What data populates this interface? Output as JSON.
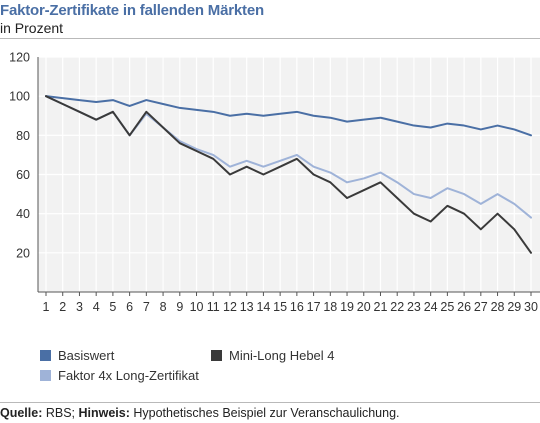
{
  "header": {
    "title": "Faktor-Zertifikate in fallenden Märkten",
    "subtitle": "in Prozent"
  },
  "footer": {
    "source_label": "Quelle:",
    "source_value": " RBS; ",
    "note_label": "Hinweis:",
    "note_value": " Hypothetisches Beispiel zur Veranschaulichung."
  },
  "colors": {
    "background": "#ffffff",
    "plot_background": "#f2f2f2",
    "grid": "#ffffff",
    "axis": "#555555"
  },
  "chart_data": {
    "type": "line",
    "title": "Faktor-Zertifikate in fallenden Märkten",
    "subtitle": "in Prozent",
    "xlabel": "",
    "ylabel": "",
    "x": [
      1,
      2,
      3,
      4,
      5,
      6,
      7,
      8,
      9,
      10,
      11,
      12,
      13,
      14,
      15,
      16,
      17,
      18,
      19,
      20,
      21,
      22,
      23,
      24,
      25,
      26,
      27,
      28,
      29,
      30
    ],
    "ylim": [
      0,
      120
    ],
    "yticks": [
      20,
      40,
      60,
      80,
      100,
      120
    ],
    "grid": true,
    "legend_position": "bottom",
    "series": [
      {
        "name": "Basiswert",
        "color": "#4a6fa5",
        "values": [
          100,
          99,
          98,
          97,
          98,
          95,
          98,
          96,
          94,
          93,
          92,
          90,
          91,
          90,
          91,
          92,
          90,
          89,
          87,
          88,
          89,
          87,
          85,
          84,
          86,
          85,
          83,
          85,
          83,
          80
        ]
      },
      {
        "name": "Mini-Long Hebel 4",
        "color": "#3a3a3a",
        "values": [
          100,
          96,
          92,
          88,
          92,
          80,
          92,
          84,
          76,
          72,
          68,
          60,
          64,
          60,
          64,
          68,
          60,
          56,
          48,
          52,
          56,
          48,
          40,
          36,
          44,
          40,
          32,
          40,
          32,
          20
        ]
      },
      {
        "name": "Faktor 4x Long-Zertifikat",
        "color": "#9fb3d8",
        "values": [
          100,
          96,
          92,
          88,
          92,
          80,
          91,
          84,
          77,
          73,
          70,
          64,
          67,
          64,
          67,
          70,
          64,
          61,
          56,
          58,
          61,
          56,
          50,
          48,
          53,
          50,
          45,
          50,
          45,
          38
        ]
      }
    ]
  }
}
